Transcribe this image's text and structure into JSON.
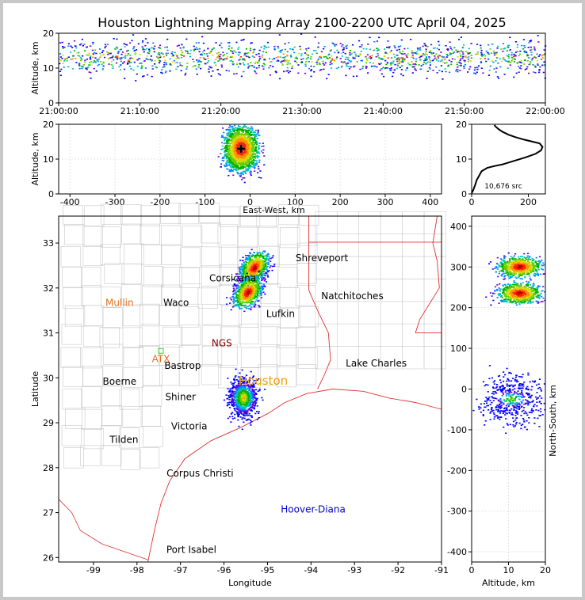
{
  "title": "Houston Lightning Mapping Array 2100-2200 UTC April 04, 2025",
  "chart_data": [
    {
      "id": "time-height",
      "type": "scatter",
      "ylabel": "Altitude, km",
      "xlim": [
        "21:00:00",
        "22:00:00"
      ],
      "ylim": [
        0,
        20
      ],
      "x_ticks": [
        "21:00:00",
        "21:10:00",
        "21:20:00",
        "21:30:00",
        "21:40:00",
        "21:50:00",
        "22:00:00"
      ],
      "y_ticks": [
        0,
        10,
        20
      ],
      "source_altitude_band_km": [
        8,
        18
      ],
      "densest_altitude_km": 13
    },
    {
      "id": "ew-altitude",
      "type": "scatter",
      "xlabel": "East-West, km",
      "ylabel": "Altitude, km",
      "xlim": [
        -425,
        425
      ],
      "ylim": [
        0,
        20
      ],
      "x_ticks": [
        -400,
        -300,
        -200,
        -100,
        0,
        100,
        200,
        300,
        400
      ],
      "y_ticks": [
        0,
        10,
        20
      ],
      "core_east_west_km": -20,
      "core_altitude_km": 13,
      "sparse_cluster_east_west_km": -20
    },
    {
      "id": "altitude-histogram",
      "type": "line",
      "ylim": [
        0,
        20
      ],
      "xlim": [
        0,
        260
      ],
      "x_ticks": [
        0,
        200
      ],
      "y_ticks": [
        0,
        10,
        20
      ],
      "annotation": "10,676 src",
      "points": [
        [
          0,
          0.2
        ],
        [
          5,
          1
        ],
        [
          12,
          2.5
        ],
        [
          18,
          4
        ],
        [
          25,
          5
        ],
        [
          35,
          6.5
        ],
        [
          55,
          7.5
        ],
        [
          80,
          8
        ],
        [
          110,
          8.5
        ],
        [
          150,
          9.5
        ],
        [
          190,
          10.5
        ],
        [
          225,
          11.5
        ],
        [
          245,
          12.5
        ],
        [
          250,
          13.5
        ],
        [
          240,
          14.5
        ],
        [
          215,
          15
        ],
        [
          185,
          15.6
        ],
        [
          155,
          16.3
        ],
        [
          130,
          17
        ],
        [
          110,
          17.8
        ],
        [
          95,
          18.6
        ],
        [
          85,
          19.3
        ],
        [
          80,
          19.8
        ]
      ]
    },
    {
      "id": "plan-map",
      "type": "scatter",
      "xlabel": "Longitude",
      "ylabel": "Latitude",
      "xlim": [
        -99.8,
        -91
      ],
      "ylim": [
        25.9,
        33.6
      ],
      "x_ticks": [
        -99,
        -98,
        -97,
        -96,
        -95,
        -94,
        -93,
        -92,
        -91
      ],
      "y_ticks": [
        26,
        27,
        28,
        29,
        30,
        31,
        32,
        33
      ],
      "storm_cells": [
        {
          "lon": -95.3,
          "lat": 32.45
        },
        {
          "lon": -95.45,
          "lat": 31.9
        },
        {
          "lon": -95.55,
          "lat": 29.55
        }
      ],
      "cities": [
        {
          "name": "Shreveport",
          "lon": -93.75,
          "lat": 32.6,
          "color": "#000000"
        },
        {
          "name": "Natchitoches",
          "lon": -93.05,
          "lat": 31.75,
          "color": "#000000"
        },
        {
          "name": "Lufkin",
          "lon": -94.7,
          "lat": 31.35,
          "color": "#000000"
        },
        {
          "name": "Corsicana",
          "lon": -95.8,
          "lat": 32.15,
          "color": "#000000"
        },
        {
          "name": "Waco",
          "lon": -97.1,
          "lat": 31.6,
          "color": "#000000"
        },
        {
          "name": "Mullin",
          "lon": -98.4,
          "lat": 31.6,
          "color": "#e07020"
        },
        {
          "name": "NGS",
          "lon": -96.05,
          "lat": 30.7,
          "color": "#800000"
        },
        {
          "name": "ATX",
          "lon": -97.45,
          "lat": 30.35,
          "color": "#e07020"
        },
        {
          "name": "Bastrop",
          "lon": -96.95,
          "lat": 30.2,
          "color": "#000000"
        },
        {
          "name": "Lake Charles",
          "lon": -92.5,
          "lat": 30.25,
          "color": "#000000"
        },
        {
          "name": "Houston",
          "lon": -95.1,
          "lat": 29.85,
          "color": "#f0a000"
        },
        {
          "name": "Boerne",
          "lon": -98.4,
          "lat": 29.85,
          "color": "#000000"
        },
        {
          "name": "Shiner",
          "lon": -97.0,
          "lat": 29.5,
          "color": "#000000"
        },
        {
          "name": "Victoria",
          "lon": -96.8,
          "lat": 28.85,
          "color": "#000000"
        },
        {
          "name": "Tilden",
          "lon": -98.3,
          "lat": 28.55,
          "color": "#000000"
        },
        {
          "name": "Corpus Christi",
          "lon": -96.55,
          "lat": 27.8,
          "color": "#000000"
        },
        {
          "name": "Hoover-Diana",
          "lon": -93.95,
          "lat": 27.0,
          "color": "#0000cc"
        },
        {
          "name": "Port Isabel",
          "lon": -96.75,
          "lat": 26.1,
          "color": "#000000"
        }
      ]
    },
    {
      "id": "altitude-ns",
      "type": "scatter",
      "xlabel": "Altitude, km",
      "ylabel": "North-South, km",
      "xlim": [
        0,
        20
      ],
      "ylim": [
        -425,
        425
      ],
      "x_ticks": [
        0,
        10,
        20
      ],
      "y_ticks": [
        -400,
        -300,
        -200,
        -100,
        0,
        100,
        200,
        300,
        400
      ],
      "clusters": [
        {
          "ns": 300,
          "alt": 13
        },
        {
          "ns": 235,
          "alt": 13
        },
        {
          "ns": -25,
          "alt": 11
        }
      ]
    }
  ]
}
